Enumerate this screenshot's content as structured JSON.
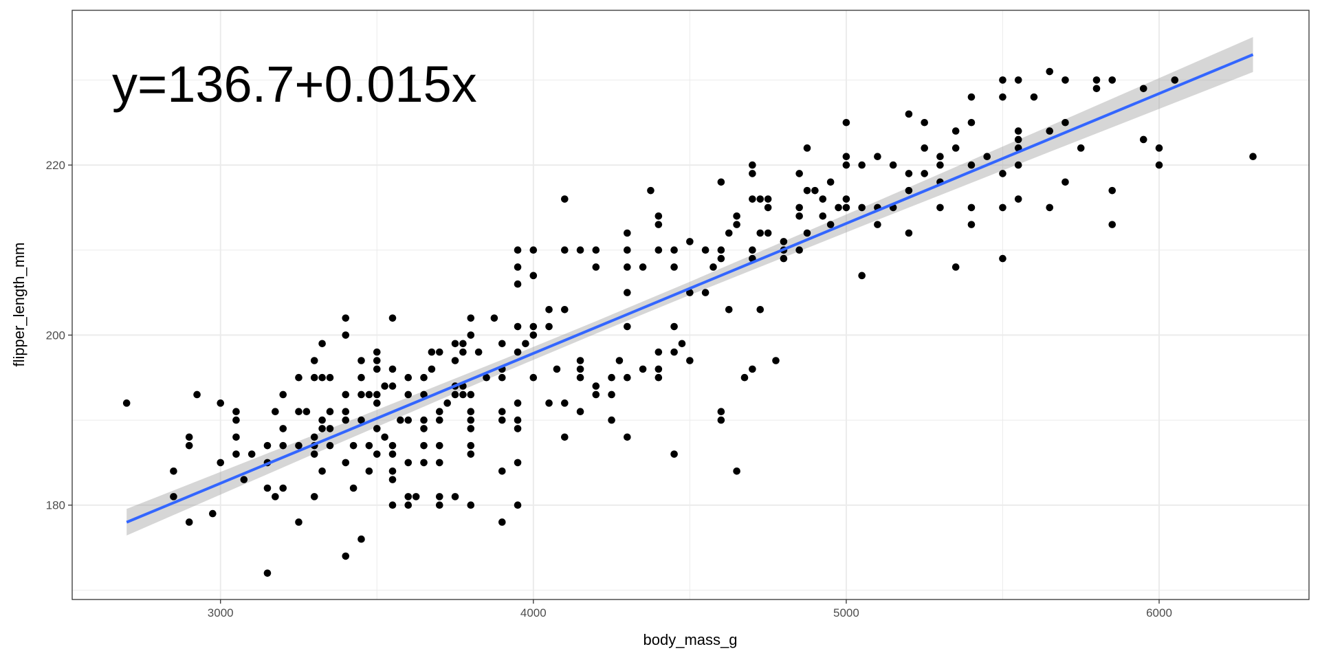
{
  "chart_data": {
    "type": "scatter",
    "title": "",
    "xlabel": "body_mass_g",
    "ylabel": "flipper_length_mm",
    "xlim": [
      2526,
      6479
    ],
    "ylim": [
      168.9,
      238.2
    ],
    "x_ticks": [
      3000,
      4000,
      5000,
      6000
    ],
    "x_tick_labels": [
      "3000",
      "4000",
      "5000",
      "6000"
    ],
    "y_ticks": [
      180,
      200,
      220
    ],
    "y_tick_labels": [
      "180",
      "200",
      "220"
    ],
    "grid": true,
    "annotation": "y=136.7+0.015x",
    "colors": {
      "points": "#000000",
      "fit_line": "#3366FF",
      "confidence_band": "#999999",
      "grid": "#EBEBEB",
      "panel_border": "#333333"
    },
    "fit": {
      "intercept": 136.73,
      "slope": 0.01528,
      "x_range": [
        2700,
        6300
      ]
    },
    "confidence_band": {
      "x": [
        2700,
        3300,
        3900,
        4200,
        4500,
        5100,
        5700,
        6300
      ],
      "lower": [
        176.43,
        186.04,
        195.54,
        200.17,
        204.71,
        213.55,
        222.27,
        230.94
      ],
      "upper": [
        179.55,
        188.26,
        197.1,
        201.63,
        206.27,
        215.77,
        225.39,
        235.06
      ]
    },
    "points": [
      [
        2700,
        192
      ],
      [
        2850,
        184
      ],
      [
        2850,
        181
      ],
      [
        2900,
        188
      ],
      [
        2900,
        187
      ],
      [
        2900,
        178
      ],
      [
        2925,
        193
      ],
      [
        2975,
        179
      ],
      [
        3000,
        192
      ],
      [
        3000,
        185
      ],
      [
        3050,
        191
      ],
      [
        3050,
        190
      ],
      [
        3050,
        188
      ],
      [
        3050,
        186
      ],
      [
        3075,
        183
      ],
      [
        3100,
        186
      ],
      [
        3150,
        185
      ],
      [
        3150,
        187
      ],
      [
        3150,
        182
      ],
      [
        3150,
        172
      ],
      [
        3175,
        191
      ],
      [
        3175,
        181
      ],
      [
        3200,
        189
      ],
      [
        3200,
        187
      ],
      [
        3200,
        182
      ],
      [
        3200,
        193
      ],
      [
        3250,
        195
      ],
      [
        3250,
        191
      ],
      [
        3250,
        187
      ],
      [
        3250,
        178
      ],
      [
        3275,
        191
      ],
      [
        3300,
        197
      ],
      [
        3300,
        195
      ],
      [
        3300,
        188
      ],
      [
        3300,
        186
      ],
      [
        3300,
        181
      ],
      [
        3300,
        187
      ],
      [
        3325,
        195
      ],
      [
        3325,
        190
      ],
      [
        3325,
        189
      ],
      [
        3325,
        184
      ],
      [
        3325,
        199
      ],
      [
        3350,
        195
      ],
      [
        3350,
        191
      ],
      [
        3350,
        189
      ],
      [
        3350,
        187
      ],
      [
        3400,
        202
      ],
      [
        3400,
        200
      ],
      [
        3400,
        193
      ],
      [
        3400,
        191
      ],
      [
        3400,
        190
      ],
      [
        3400,
        185
      ],
      [
        3400,
        174
      ],
      [
        3425,
        182
      ],
      [
        3425,
        187
      ],
      [
        3450,
        197
      ],
      [
        3450,
        195
      ],
      [
        3450,
        193
      ],
      [
        3450,
        190
      ],
      [
        3450,
        176
      ],
      [
        3475,
        193
      ],
      [
        3475,
        187
      ],
      [
        3475,
        184
      ],
      [
        3500,
        198
      ],
      [
        3500,
        197
      ],
      [
        3500,
        196
      ],
      [
        3500,
        193
      ],
      [
        3500,
        192
      ],
      [
        3500,
        189
      ],
      [
        3500,
        186
      ],
      [
        3525,
        188
      ],
      [
        3525,
        194
      ],
      [
        3550,
        202
      ],
      [
        3550,
        196
      ],
      [
        3550,
        194
      ],
      [
        3550,
        187
      ],
      [
        3550,
        186
      ],
      [
        3550,
        184
      ],
      [
        3550,
        183
      ],
      [
        3550,
        180
      ],
      [
        3575,
        190
      ],
      [
        3600,
        195
      ],
      [
        3600,
        193
      ],
      [
        3600,
        190
      ],
      [
        3600,
        185
      ],
      [
        3600,
        181
      ],
      [
        3600,
        180
      ],
      [
        3625,
        181
      ],
      [
        3650,
        195
      ],
      [
        3650,
        193
      ],
      [
        3650,
        190
      ],
      [
        3650,
        189
      ],
      [
        3650,
        187
      ],
      [
        3650,
        185
      ],
      [
        3675,
        196
      ],
      [
        3675,
        198
      ],
      [
        3700,
        198
      ],
      [
        3700,
        191
      ],
      [
        3700,
        190
      ],
      [
        3700,
        187
      ],
      [
        3700,
        185
      ],
      [
        3700,
        181
      ],
      [
        3700,
        180
      ],
      [
        3725,
        192
      ],
      [
        3750,
        197
      ],
      [
        3750,
        199
      ],
      [
        3750,
        194
      ],
      [
        3750,
        193
      ],
      [
        3750,
        181
      ],
      [
        3775,
        199
      ],
      [
        3775,
        198
      ],
      [
        3775,
        194
      ],
      [
        3775,
        193
      ],
      [
        3800,
        202
      ],
      [
        3800,
        200
      ],
      [
        3800,
        193
      ],
      [
        3800,
        191
      ],
      [
        3800,
        190
      ],
      [
        3800,
        189
      ],
      [
        3800,
        187
      ],
      [
        3800,
        186
      ],
      [
        3800,
        180
      ],
      [
        3825,
        198
      ],
      [
        3850,
        195
      ],
      [
        3875,
        202
      ],
      [
        3900,
        199
      ],
      [
        3900,
        196
      ],
      [
        3900,
        195
      ],
      [
        3900,
        191
      ],
      [
        3900,
        190
      ],
      [
        3900,
        184
      ],
      [
        3900,
        178
      ],
      [
        3950,
        210
      ],
      [
        3950,
        208
      ],
      [
        3950,
        206
      ],
      [
        3950,
        201
      ],
      [
        3950,
        198
      ],
      [
        3950,
        192
      ],
      [
        3950,
        190
      ],
      [
        3950,
        189
      ],
      [
        3950,
        185
      ],
      [
        3950,
        180
      ],
      [
        3975,
        199
      ],
      [
        4000,
        210
      ],
      [
        4000,
        207
      ],
      [
        4000,
        201
      ],
      [
        4000,
        200
      ],
      [
        4000,
        195
      ],
      [
        4050,
        203
      ],
      [
        4050,
        201
      ],
      [
        4050,
        192
      ],
      [
        4075,
        196
      ],
      [
        4100,
        216
      ],
      [
        4100,
        210
      ],
      [
        4100,
        203
      ],
      [
        4100,
        192
      ],
      [
        4100,
        188
      ],
      [
        4150,
        210
      ],
      [
        4150,
        197
      ],
      [
        4150,
        196
      ],
      [
        4150,
        195
      ],
      [
        4150,
        191
      ],
      [
        4200,
        210
      ],
      [
        4200,
        208
      ],
      [
        4200,
        194
      ],
      [
        4200,
        193
      ],
      [
        4250,
        195
      ],
      [
        4250,
        193
      ],
      [
        4250,
        190
      ],
      [
        4275,
        197
      ],
      [
        4300,
        212
      ],
      [
        4300,
        210
      ],
      [
        4300,
        208
      ],
      [
        4300,
        205
      ],
      [
        4300,
        201
      ],
      [
        4300,
        195
      ],
      [
        4300,
        188
      ],
      [
        4350,
        208
      ],
      [
        4350,
        196
      ],
      [
        4375,
        217
      ],
      [
        4400,
        214
      ],
      [
        4400,
        213
      ],
      [
        4400,
        210
      ],
      [
        4400,
        198
      ],
      [
        4400,
        196
      ],
      [
        4400,
        195
      ],
      [
        4450,
        210
      ],
      [
        4450,
        208
      ],
      [
        4450,
        201
      ],
      [
        4450,
        198
      ],
      [
        4450,
        186
      ],
      [
        4475,
        199
      ],
      [
        4500,
        211
      ],
      [
        4500,
        205
      ],
      [
        4500,
        197
      ],
      [
        4550,
        210
      ],
      [
        4550,
        205
      ],
      [
        4575,
        208
      ],
      [
        4600,
        218
      ],
      [
        4600,
        210
      ],
      [
        4600,
        209
      ],
      [
        4600,
        191
      ],
      [
        4600,
        190
      ],
      [
        4625,
        203
      ],
      [
        4625,
        212
      ],
      [
        4650,
        214
      ],
      [
        4650,
        213
      ],
      [
        4650,
        184
      ],
      [
        4675,
        195
      ],
      [
        4700,
        220
      ],
      [
        4700,
        219
      ],
      [
        4700,
        216
      ],
      [
        4700,
        210
      ],
      [
        4700,
        209
      ],
      [
        4700,
        196
      ],
      [
        4725,
        216
      ],
      [
        4725,
        212
      ],
      [
        4725,
        203
      ],
      [
        4750,
        216
      ],
      [
        4750,
        215
      ],
      [
        4750,
        212
      ],
      [
        4775,
        197
      ],
      [
        4800,
        211
      ],
      [
        4800,
        210
      ],
      [
        4800,
        209
      ],
      [
        4850,
        219
      ],
      [
        4850,
        215
      ],
      [
        4850,
        214
      ],
      [
        4850,
        210
      ],
      [
        4875,
        222
      ],
      [
        4875,
        217
      ],
      [
        4875,
        212
      ],
      [
        4900,
        217
      ],
      [
        4925,
        216
      ],
      [
        4925,
        214
      ],
      [
        4950,
        218
      ],
      [
        4950,
        213
      ],
      [
        4975,
        215
      ],
      [
        5000,
        225
      ],
      [
        5000,
        221
      ],
      [
        5000,
        220
      ],
      [
        5000,
        216
      ],
      [
        5000,
        215
      ],
      [
        5050,
        220
      ],
      [
        5050,
        215
      ],
      [
        5050,
        207
      ],
      [
        5100,
        221
      ],
      [
        5100,
        215
      ],
      [
        5100,
        213
      ],
      [
        5150,
        220
      ],
      [
        5150,
        215
      ],
      [
        5200,
        226
      ],
      [
        5200,
        219
      ],
      [
        5200,
        217
      ],
      [
        5200,
        212
      ],
      [
        5250,
        225
      ],
      [
        5250,
        222
      ],
      [
        5250,
        219
      ],
      [
        5300,
        221
      ],
      [
        5300,
        220
      ],
      [
        5300,
        218
      ],
      [
        5300,
        215
      ],
      [
        5350,
        224
      ],
      [
        5350,
        222
      ],
      [
        5350,
        208
      ],
      [
        5400,
        228
      ],
      [
        5400,
        225
      ],
      [
        5400,
        220
      ],
      [
        5400,
        215
      ],
      [
        5400,
        213
      ],
      [
        5450,
        221
      ],
      [
        5500,
        230
      ],
      [
        5500,
        228
      ],
      [
        5500,
        219
      ],
      [
        5500,
        215
      ],
      [
        5500,
        209
      ],
      [
        5550,
        230
      ],
      [
        5550,
        224
      ],
      [
        5550,
        223
      ],
      [
        5550,
        222
      ],
      [
        5550,
        220
      ],
      [
        5550,
        216
      ],
      [
        5600,
        228
      ],
      [
        5650,
        231
      ],
      [
        5650,
        224
      ],
      [
        5650,
        215
      ],
      [
        5700,
        230
      ],
      [
        5700,
        225
      ],
      [
        5700,
        218
      ],
      [
        5750,
        222
      ],
      [
        5800,
        230
      ],
      [
        5800,
        229
      ],
      [
        5850,
        230
      ],
      [
        5850,
        217
      ],
      [
        5850,
        213
      ],
      [
        5950,
        229
      ],
      [
        5950,
        223
      ],
      [
        6000,
        222
      ],
      [
        6000,
        220
      ],
      [
        6050,
        230
      ],
      [
        6300,
        221
      ]
    ]
  }
}
